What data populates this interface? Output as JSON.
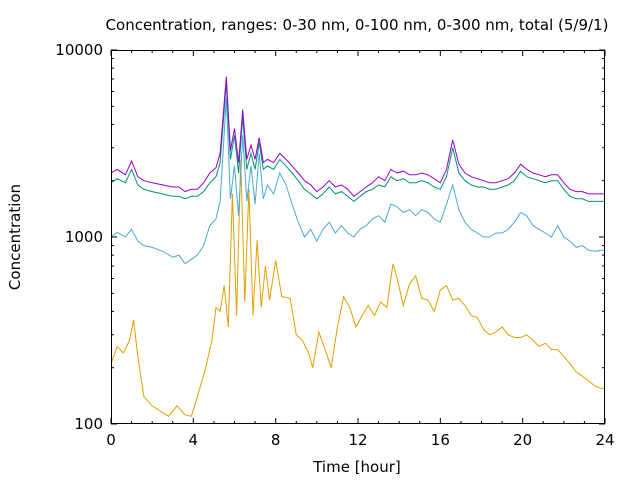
{
  "chart_data": {
    "type": "line",
    "title": "Concentration, ranges: 0-30 nm, 0-100 nm, 0-300 nm, total (5/9/1)",
    "xlabel": "Time [hour]",
    "ylabel": "Concentration",
    "xlim": [
      0,
      24
    ],
    "ylim": [
      100,
      10000
    ],
    "yscale": "log",
    "grid": false,
    "legend": "none",
    "xticks": [
      0,
      4,
      8,
      12,
      16,
      20,
      24
    ],
    "xtick_labels": [
      "0",
      "4",
      "8",
      "12",
      "16",
      "20",
      "24"
    ],
    "yticks": [
      100,
      1000,
      10000
    ],
    "ytick_labels": [
      "100",
      "1000",
      "10000"
    ],
    "series": [
      {
        "color": "#e0a000",
        "x": [
          0,
          0.3,
          0.6,
          0.9,
          1.1,
          1.3,
          1.6,
          2,
          2.5,
          2.8,
          3.2,
          3.6,
          3.9,
          4.2,
          4.6,
          4.9,
          5.1,
          5.3,
          5.5,
          5.7,
          5.9,
          6.1,
          6.3,
          6.5,
          6.7,
          6.9,
          7.1,
          7.3,
          7.5,
          7.7,
          8,
          8.3,
          8.7,
          9,
          9.3,
          9.6,
          9.8,
          10.1,
          10.4,
          10.7,
          11,
          11.3,
          11.6,
          11.9,
          12.2,
          12.5,
          12.8,
          13.1,
          13.4,
          13.7,
          13.9,
          14.2,
          14.5,
          14.8,
          15.1,
          15.4,
          15.7,
          16,
          16.3,
          16.6,
          16.9,
          17.2,
          17.5,
          17.8,
          18.1,
          18.4,
          18.7,
          19,
          19.3,
          19.6,
          19.9,
          20.2,
          20.5,
          20.8,
          21.1,
          21.4,
          21.7,
          22,
          22.3,
          22.6,
          22.9,
          23.2,
          23.5,
          23.8,
          24
        ],
        "y": [
          210,
          260,
          240,
          280,
          360,
          230,
          140,
          125,
          115,
          110,
          125,
          112,
          110,
          140,
          200,
          280,
          420,
          400,
          550,
          330,
          1700,
          380,
          2600,
          450,
          1800,
          380,
          960,
          420,
          700,
          460,
          750,
          480,
          470,
          300,
          280,
          240,
          200,
          310,
          250,
          200,
          330,
          480,
          420,
          330,
          380,
          430,
          380,
          450,
          420,
          720,
          600,
          430,
          560,
          620,
          470,
          460,
          400,
          520,
          550,
          460,
          470,
          430,
          380,
          370,
          320,
          300,
          310,
          330,
          300,
          290,
          290,
          300,
          280,
          260,
          270,
          250,
          250,
          230,
          210,
          190,
          180,
          170,
          160,
          155,
          155
        ]
      },
      {
        "color": "#4aa8d4",
        "x": [
          0,
          0.3,
          0.7,
          1,
          1.3,
          1.6,
          2,
          2.5,
          3,
          3.3,
          3.6,
          3.9,
          4.2,
          4.5,
          4.8,
          5.1,
          5.3,
          5.6,
          5.8,
          6,
          6.2,
          6.4,
          6.6,
          6.8,
          7,
          7.2,
          7.4,
          7.6,
          7.9,
          8.2,
          8.5,
          8.8,
          9.1,
          9.4,
          9.7,
          10,
          10.3,
          10.6,
          10.9,
          11.2,
          11.5,
          11.8,
          12.1,
          12.4,
          12.7,
          13,
          13.3,
          13.6,
          13.9,
          14.2,
          14.5,
          14.8,
          15.1,
          15.4,
          15.7,
          16,
          16.3,
          16.6,
          16.9,
          17.2,
          17.5,
          17.8,
          18.1,
          18.4,
          18.7,
          19,
          19.3,
          19.6,
          19.9,
          20.2,
          20.5,
          20.8,
          21.1,
          21.4,
          21.7,
          22,
          22.3,
          22.6,
          22.9,
          23.2,
          23.5,
          23.8,
          24
        ],
        "y": [
          1000,
          1060,
          1000,
          1100,
          950,
          900,
          880,
          840,
          780,
          800,
          720,
          760,
          800,
          900,
          1150,
          1250,
          1550,
          5500,
          1600,
          2400,
          1300,
          3500,
          1550,
          2400,
          1500,
          2800,
          1600,
          1900,
          1700,
          2200,
          1900,
          1500,
          1200,
          1000,
          1100,
          950,
          1100,
          1200,
          1050,
          1150,
          1050,
          1000,
          1100,
          1150,
          1250,
          1300,
          1200,
          1500,
          1450,
          1350,
          1400,
          1300,
          1400,
          1350,
          1250,
          1200,
          1500,
          1900,
          1400,
          1200,
          1100,
          1050,
          1000,
          1000,
          1050,
          1050,
          1100,
          1200,
          1350,
          1300,
          1150,
          1100,
          1050,
          1000,
          1150,
          1000,
          950,
          880,
          900,
          850,
          840,
          850,
          850
        ]
      },
      {
        "color": "#009270",
        "x": [
          0,
          0.3,
          0.7,
          1,
          1.3,
          1.6,
          2,
          2.5,
          3,
          3.3,
          3.6,
          3.9,
          4.2,
          4.5,
          4.8,
          5.1,
          5.3,
          5.6,
          5.8,
          6,
          6.2,
          6.4,
          6.6,
          6.8,
          7,
          7.2,
          7.4,
          7.6,
          7.9,
          8.2,
          8.5,
          8.8,
          9.1,
          9.4,
          9.7,
          10,
          10.3,
          10.6,
          10.9,
          11.2,
          11.5,
          11.8,
          12.1,
          12.4,
          12.7,
          13,
          13.3,
          13.6,
          13.9,
          14.2,
          14.5,
          14.8,
          15.1,
          15.4,
          15.7,
          16,
          16.3,
          16.6,
          16.9,
          17.2,
          17.5,
          17.8,
          18.1,
          18.4,
          18.7,
          19,
          19.3,
          19.6,
          19.9,
          20.2,
          20.5,
          20.8,
          21.1,
          21.4,
          21.7,
          22,
          22.3,
          22.6,
          22.9,
          23.2,
          23.5,
          23.8,
          24
        ],
        "y": [
          1950,
          2050,
          1950,
          2300,
          1900,
          1800,
          1750,
          1700,
          1650,
          1650,
          1600,
          1650,
          1650,
          1750,
          1950,
          2100,
          2500,
          6600,
          2600,
          3500,
          2200,
          4400,
          2300,
          2800,
          2300,
          3200,
          2300,
          2400,
          2300,
          2600,
          2400,
          2200,
          2000,
          1800,
          1700,
          1600,
          1700,
          1850,
          1700,
          1750,
          1650,
          1550,
          1650,
          1750,
          1800,
          1900,
          1850,
          2100,
          2000,
          2050,
          1950,
          1950,
          2000,
          1950,
          1850,
          1800,
          2100,
          3000,
          2200,
          2000,
          1900,
          1850,
          1850,
          1800,
          1800,
          1850,
          1900,
          2000,
          2250,
          2100,
          2050,
          2000,
          1950,
          2000,
          2000,
          1800,
          1650,
          1600,
          1600,
          1550,
          1550,
          1550,
          1550
        ]
      },
      {
        "color": "#9400d3",
        "x": [
          0,
          0.3,
          0.7,
          1,
          1.3,
          1.6,
          2,
          2.5,
          3,
          3.3,
          3.6,
          3.9,
          4.2,
          4.5,
          4.8,
          5.1,
          5.3,
          5.6,
          5.8,
          6,
          6.2,
          6.4,
          6.6,
          6.8,
          7,
          7.2,
          7.4,
          7.6,
          7.9,
          8.2,
          8.5,
          8.8,
          9.1,
          9.4,
          9.7,
          10,
          10.3,
          10.6,
          10.9,
          11.2,
          11.5,
          11.8,
          12.1,
          12.4,
          12.7,
          13,
          13.3,
          13.6,
          13.9,
          14.2,
          14.5,
          14.8,
          15.1,
          15.4,
          15.7,
          16,
          16.3,
          16.6,
          16.9,
          17.2,
          17.5,
          17.8,
          18.1,
          18.4,
          18.7,
          19,
          19.3,
          19.6,
          19.9,
          20.2,
          20.5,
          20.8,
          21.1,
          21.4,
          21.7,
          22,
          22.3,
          22.6,
          22.9,
          23.2,
          23.5,
          23.8,
          24
        ],
        "y": [
          2200,
          2300,
          2150,
          2550,
          2100,
          2000,
          1950,
          1900,
          1850,
          1850,
          1750,
          1800,
          1800,
          1950,
          2200,
          2350,
          2800,
          7200,
          2900,
          3800,
          2500,
          4800,
          2600,
          3100,
          2600,
          3400,
          2500,
          2600,
          2500,
          2800,
          2600,
          2400,
          2200,
          2000,
          1900,
          1750,
          1850,
          2000,
          1850,
          1900,
          1800,
          1650,
          1750,
          1850,
          1950,
          2100,
          2000,
          2300,
          2200,
          2250,
          2150,
          2150,
          2200,
          2150,
          2050,
          1950,
          2300,
          3300,
          2450,
          2200,
          2100,
          2050,
          2000,
          1950,
          1950,
          2000,
          2050,
          2200,
          2450,
          2300,
          2200,
          2150,
          2100,
          2150,
          2150,
          1950,
          1800,
          1750,
          1750,
          1700,
          1700,
          1700,
          1700
        ]
      }
    ]
  }
}
